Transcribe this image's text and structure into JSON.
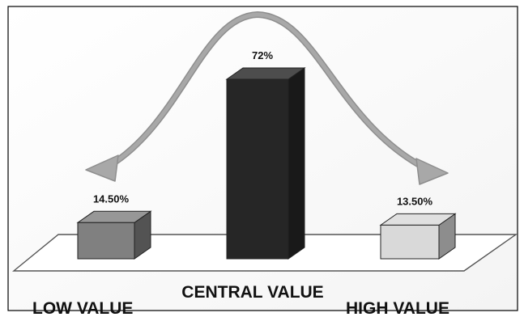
{
  "chart_data": {
    "type": "bar",
    "categories": [
      "LOW VALUE",
      "CENTRAL VALUE",
      "HIGH VALUE"
    ],
    "values": [
      14.5,
      72,
      13.5
    ],
    "value_labels": [
      "14.50%",
      "72%",
      "13.50%"
    ],
    "bar_colors": [
      "#808080",
      "#262626",
      "#d9d9d9"
    ],
    "curve_color": "#a8a8a8",
    "title": "",
    "xlabel": "",
    "ylabel": "",
    "ylim": [
      0,
      80
    ],
    "grid": false,
    "legend": "none",
    "style": "3d-column with bell-curve overlay"
  }
}
